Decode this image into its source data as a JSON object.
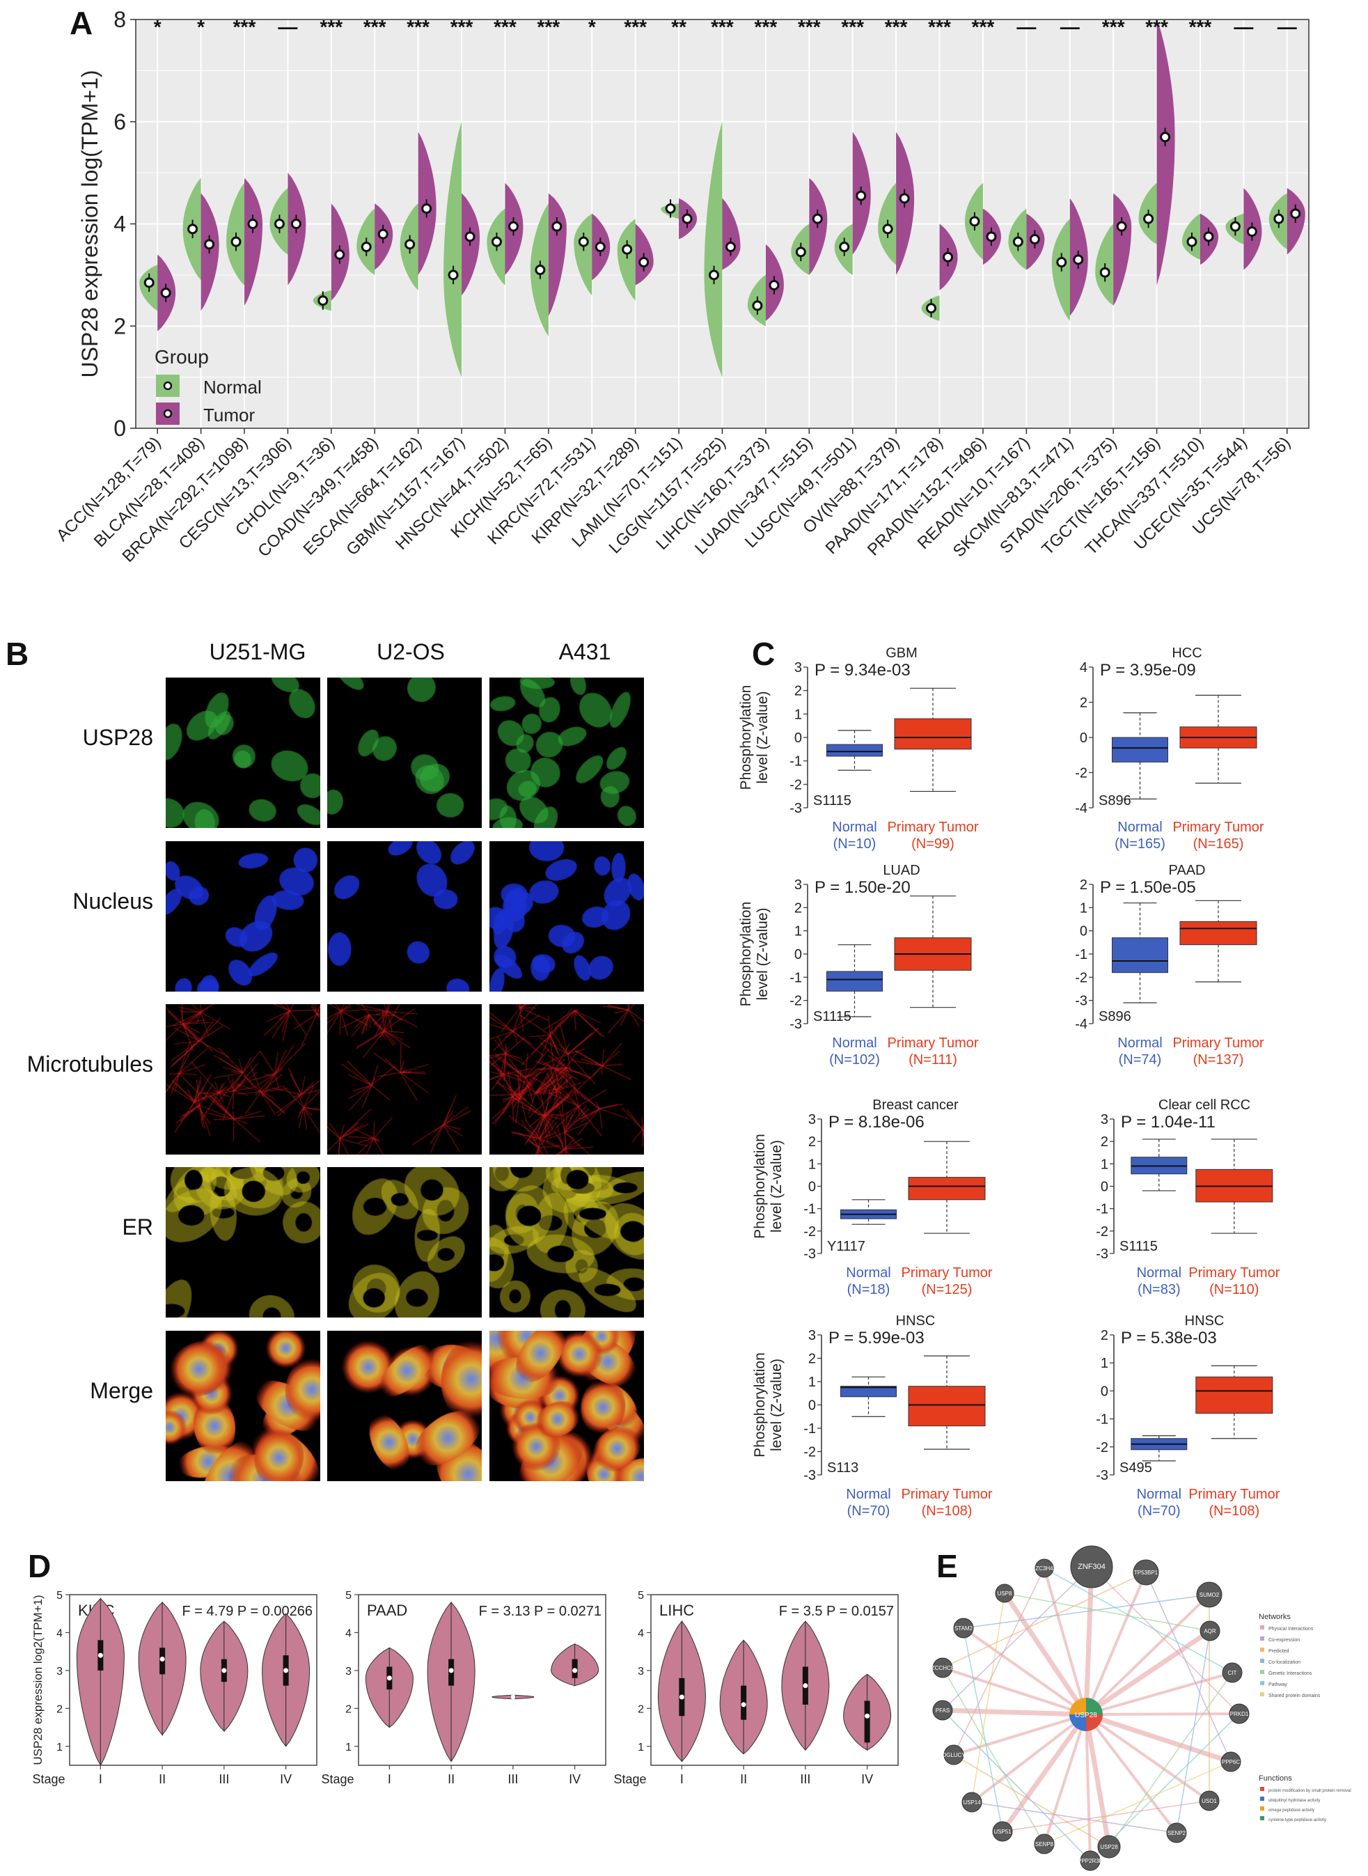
{
  "panel_labels": {
    "a": "A",
    "b": "B",
    "c": "C",
    "d": "D",
    "e": "E"
  },
  "panel_a": {
    "ylabel": "USP28 expression log(TPM+1)",
    "yticks": [
      0,
      2,
      4,
      6,
      8
    ],
    "legend_title": "Group",
    "legend": [
      "Normal",
      "Tumor"
    ],
    "colors": {
      "normal": "#8dc47b",
      "tumor": "#a04b90"
    },
    "sig": [
      "*",
      "*",
      "***",
      "—",
      "***",
      "***",
      "***",
      "***",
      "***",
      "***",
      "*",
      "***",
      "**",
      "***",
      "***",
      "***",
      "***",
      "***",
      "***",
      "***",
      "—",
      "—",
      "***",
      "***",
      "***",
      "—",
      "—"
    ],
    "categories": [
      "ACC(N=128,T=79)",
      "BLCA(N=28,T=408)",
      "BRCA(N=292,T=1098)",
      "CESC(N=13,T=306)",
      "CHOL(N=9,T=36)",
      "COAD(N=349,T=458)",
      "ESCA(N=664,T=162)",
      "GBM(N=1157,T=167)",
      "HNSC(N=44,T=502)",
      "KICH(N=52,T=65)",
      "KIRC(N=72,T=531)",
      "KIRP(N=32,T=289)",
      "LAML(N=70,T=151)",
      "LGG(N=1157,T=525)",
      "LIHC(N=160,T=373)",
      "LUAD(N=347,T=515)",
      "LUSC(N=49,T=501)",
      "OV(N=88,T=379)",
      "PAAD(N=171,T=178)",
      "PRAD(N=152,T=496)",
      "READ(N=10,T=167)",
      "SKCM(N=813,T=471)",
      "STAD(N=206,T=375)",
      "TGCT(N=165,T=156)",
      "THCA(N=337,T=510)",
      "UCEC(N=35,T=544)",
      "UCS(N=78,T=56)"
    ]
  },
  "chart_data": [
    {
      "type": "violin",
      "panel": "A",
      "ylabel": "USP28 expression log(TPM+1)",
      "ylim": [
        0,
        8
      ],
      "series": [
        {
          "name": "Normal",
          "min": [
            2.3,
            2.9,
            2.8,
            3.4,
            2.3,
            3.0,
            2.7,
            1.0,
            2.8,
            1.8,
            2.6,
            2.5,
            4.1,
            1.0,
            2.0,
            3.0,
            3.0,
            3.2,
            2.1,
            3.3,
            3.1,
            2.1,
            2.4,
            3.6,
            3.3,
            3.6,
            3.5
          ],
          "median": [
            2.85,
            3.9,
            3.65,
            4.0,
            2.5,
            3.55,
            3.6,
            3.0,
            3.65,
            3.1,
            3.65,
            3.5,
            4.3,
            3.0,
            2.4,
            3.45,
            3.55,
            3.9,
            2.35,
            4.05,
            3.65,
            3.25,
            3.05,
            4.1,
            3.65,
            3.95,
            4.1
          ],
          "max": [
            3.2,
            4.9,
            4.8,
            4.7,
            2.7,
            4.3,
            4.4,
            6.0,
            4.3,
            4.4,
            4.2,
            4.1,
            4.4,
            6.0,
            3.0,
            4.0,
            4.0,
            4.8,
            2.6,
            4.8,
            4.3,
            4.1,
            4.0,
            4.8,
            4.2,
            4.2,
            4.6
          ]
        },
        {
          "name": "Tumor",
          "min": [
            1.9,
            2.3,
            2.4,
            2.8,
            2.5,
            3.1,
            3.0,
            2.6,
            3.0,
            2.2,
            2.9,
            2.8,
            3.7,
            3.1,
            2.1,
            3.0,
            3.4,
            3.0,
            2.7,
            3.2,
            3.1,
            2.2,
            2.4,
            2.8,
            3.2,
            3.1,
            3.4
          ],
          "median": [
            2.65,
            3.6,
            4.0,
            4.0,
            3.4,
            3.8,
            4.3,
            3.75,
            3.95,
            3.95,
            3.55,
            3.25,
            4.1,
            3.55,
            2.8,
            4.1,
            4.55,
            4.5,
            3.35,
            3.75,
            3.7,
            3.3,
            3.95,
            5.7,
            3.75,
            3.85,
            4.2
          ],
          "max": [
            3.4,
            4.6,
            4.9,
            5.0,
            4.4,
            4.4,
            5.8,
            4.6,
            4.8,
            4.6,
            4.2,
            4.0,
            4.5,
            4.5,
            3.6,
            4.9,
            5.8,
            5.8,
            4.0,
            4.3,
            4.2,
            4.5,
            4.6,
            8.0,
            4.2,
            4.7,
            4.7
          ]
        }
      ]
    },
    {
      "type": "box",
      "panel": "C",
      "ylabel": "Phosphorylation level (Z-value)",
      "plots": [
        {
          "title": "GBM",
          "pvalue": "P = 9.34e-03",
          "site": "S1115",
          "normal_label": "Normal",
          "normal_n": "(N=10)",
          "tumor_label": "Primary Tumor",
          "tumor_n": "(N=99)",
          "ylim": [
            -3,
            3
          ],
          "yticks": [
            "3",
            "2",
            "1",
            "0",
            "-1",
            "-2",
            "-3"
          ],
          "normal_box": [
            -1.4,
            -0.8,
            -0.6,
            -0.3,
            0.3
          ],
          "tumor_box": [
            -2.3,
            -0.5,
            0.0,
            0.8,
            2.1
          ]
        },
        {
          "title": "HCC",
          "pvalue": "P = 3.95e-09",
          "site": "S896",
          "normal_label": "Normal",
          "normal_n": "(N=165)",
          "tumor_label": "Primary Tumor",
          "tumor_n": "(N=165)",
          "ylim": [
            -4,
            4
          ],
          "yticks": [
            "4",
            "2",
            "0",
            "-2",
            "-4"
          ],
          "normal_box": [
            -3.5,
            -1.4,
            -0.6,
            0.0,
            1.4
          ],
          "tumor_box": [
            -2.6,
            -0.6,
            0.0,
            0.6,
            2.4
          ]
        },
        {
          "title": "LUAD",
          "pvalue": "P = 1.50e-20",
          "site": "S1115",
          "normal_label": "Normal",
          "normal_n": "(N=102)",
          "tumor_label": "Primary Tumor",
          "tumor_n": "(N=111)",
          "ylim": [
            -3,
            3
          ],
          "yticks": [
            "3",
            "2",
            "1",
            "0",
            "-1",
            "-2",
            "-3"
          ],
          "normal_box": [
            -2.7,
            -1.6,
            -1.1,
            -0.75,
            0.4
          ],
          "tumor_box": [
            -2.3,
            -0.7,
            0.0,
            0.7,
            2.5
          ]
        },
        {
          "title": "PAAD",
          "pvalue": "P = 1.50e-05",
          "site": "S896",
          "normal_label": "Normal",
          "normal_n": "(N=74)",
          "tumor_label": "Primary Tumor",
          "tumor_n": "(N=137)",
          "ylim": [
            -4,
            2
          ],
          "yticks": [
            "2",
            "1",
            "0",
            "-1",
            "-2",
            "-3",
            "-4"
          ],
          "normal_box": [
            -3.1,
            -1.8,
            -1.3,
            -0.3,
            1.2
          ],
          "tumor_box": [
            -2.2,
            -0.6,
            0.1,
            0.4,
            1.3
          ]
        },
        {
          "title": "Breast cancer",
          "pvalue": "P = 8.18e-06",
          "site": "Y1117",
          "normal_label": "Normal",
          "normal_n": "(N=18)",
          "tumor_label": "Primary Tumor",
          "tumor_n": "(N=125)",
          "ylim": [
            -3,
            3
          ],
          "yticks": [
            "3",
            "2",
            "1",
            "0",
            "-1",
            "-2",
            "-3"
          ],
          "normal_box": [
            -1.7,
            -1.45,
            -1.25,
            -1.05,
            -0.6
          ],
          "tumor_box": [
            -2.1,
            -0.6,
            0.0,
            0.4,
            2.0
          ]
        },
        {
          "title": "Clear cell RCC",
          "pvalue": "P = 1.04e-11",
          "site": "S1115",
          "normal_label": "Normal",
          "normal_n": "(N=83)",
          "tumor_label": "Primary Tumor",
          "tumor_n": "(N=110)",
          "ylim": [
            -3,
            3
          ],
          "yticks": [
            "3",
            "2",
            "1",
            "0",
            "-1",
            "-2",
            "-3"
          ],
          "normal_box": [
            -0.2,
            0.55,
            0.9,
            1.3,
            2.1
          ],
          "tumor_box": [
            -2.1,
            -0.7,
            0.0,
            0.75,
            2.1
          ]
        },
        {
          "title": "HNSC",
          "pvalue": "P = 5.99e-03",
          "site": "S113",
          "normal_label": "Normal",
          "normal_n": "(N=70)",
          "tumor_label": "Primary Tumor",
          "tumor_n": "(N=108)",
          "ylim": [
            -3,
            3
          ],
          "yticks": [
            "3",
            "2",
            "1",
            "0",
            "-1",
            "-2",
            "-3"
          ],
          "normal_box": [
            -0.5,
            0.35,
            0.75,
            0.8,
            1.2
          ],
          "tumor_box": [
            -1.9,
            -0.9,
            0.0,
            0.8,
            2.1
          ]
        },
        {
          "title": "HNSC",
          "pvalue": "P = 5.38e-03",
          "site": "S495",
          "normal_label": "Normal",
          "normal_n": "(N=70)",
          "tumor_label": "Primary Tumor",
          "tumor_n": "(N=108)",
          "ylim": [
            -3,
            2
          ],
          "yticks": [
            "2",
            "1",
            "0",
            "-1",
            "-2",
            "-3"
          ],
          "normal_box": [
            -2.5,
            -2.1,
            -1.9,
            -1.7,
            -1.6
          ],
          "tumor_box": [
            -1.7,
            -0.8,
            0.0,
            0.5,
            0.9
          ]
        }
      ]
    },
    {
      "type": "violin",
      "panel": "D",
      "ylabel": "USP28 expression log2(TPM+1)",
      "xlabel": "Stage",
      "categories": [
        "I",
        "II",
        "III",
        "IV"
      ],
      "ylim": [
        0.5,
        5
      ],
      "yticks": [
        1,
        2,
        3,
        4,
        5
      ],
      "plots": [
        {
          "title": "KIRC",
          "stats": "F = 4.79 P = 0.00266",
          "min": [
            0.5,
            1.3,
            1.4,
            1.0
          ],
          "median": [
            3.4,
            3.3,
            3.0,
            3.0
          ],
          "max": [
            4.9,
            4.8,
            4.3,
            4.5
          ],
          "q1": [
            3.0,
            2.9,
            2.7,
            2.6
          ],
          "q3": [
            3.8,
            3.6,
            3.3,
            3.4
          ]
        },
        {
          "title": "PAAD",
          "stats": "F = 3.13 P = 0.0271",
          "min": [
            1.5,
            0.6,
            2.25,
            2.6
          ],
          "median": [
            2.8,
            3.0,
            2.3,
            3.0
          ],
          "max": [
            3.6,
            4.8,
            2.35,
            3.7
          ],
          "q1": [
            2.5,
            2.6,
            2.28,
            2.8
          ],
          "q3": [
            3.1,
            3.3,
            2.32,
            3.3
          ]
        },
        {
          "title": "LIHC",
          "stats": "F = 3.5 P = 0.0157",
          "min": [
            0.6,
            0.8,
            0.9,
            0.9
          ],
          "median": [
            2.3,
            2.1,
            2.6,
            1.8
          ],
          "max": [
            4.3,
            3.8,
            4.3,
            2.9
          ],
          "q1": [
            1.8,
            1.7,
            2.1,
            1.1
          ],
          "q3": [
            2.8,
            2.6,
            3.1,
            2.2
          ]
        }
      ]
    }
  ],
  "panel_b": {
    "columns": [
      "U251-MG",
      "U2-OS",
      "A431"
    ],
    "rows": [
      {
        "label": "USP28",
        "color": "#2fa838"
      },
      {
        "label": "Nucleus",
        "color": "#1a2fd0"
      },
      {
        "label": "Microtubules",
        "color": "#d81b1b"
      },
      {
        "label": "ER",
        "color": "#c9c21e"
      },
      {
        "label": "Merge",
        "color": "#d9771f"
      }
    ]
  },
  "panel_e": {
    "center": "USP28",
    "nodes": [
      "ZNF304",
      "TP53BP1",
      "SUMO2",
      "AQR",
      "CIT",
      "PRKD1",
      "PPP6C",
      "USO1",
      "SENP2",
      "USP28",
      "PPP2R3B",
      "SENP8",
      "USP51",
      "USP14",
      "DGLUCY",
      "PFAS",
      "ZCCHC8",
      "STAM2",
      "USP8",
      "ZC3H4"
    ],
    "networks_title": "Networks",
    "networks": [
      {
        "label": "Physical Interactions",
        "color": "#e8a6a6"
      },
      {
        "label": "Co-expression",
        "color": "#b7a3d6"
      },
      {
        "label": "Predicted",
        "color": "#f2b473"
      },
      {
        "label": "Co-localization",
        "color": "#8fb5e0"
      },
      {
        "label": "Genetic Interactions",
        "color": "#9cd49c"
      },
      {
        "label": "Pathway",
        "color": "#7fcfd0"
      },
      {
        "label": "Shared protein domains",
        "color": "#e6d47a"
      }
    ],
    "functions_title": "Functions",
    "functions": [
      {
        "label": "protein modification by small protein removal",
        "color": "#e04b3c"
      },
      {
        "label": "ubiquitinyl hydrolase activity",
        "color": "#3b74c8"
      },
      {
        "label": "omega peptidase activity",
        "color": "#f0a020"
      },
      {
        "label": "cysteine-type peptidase activity",
        "color": "#3a9a64"
      }
    ]
  }
}
